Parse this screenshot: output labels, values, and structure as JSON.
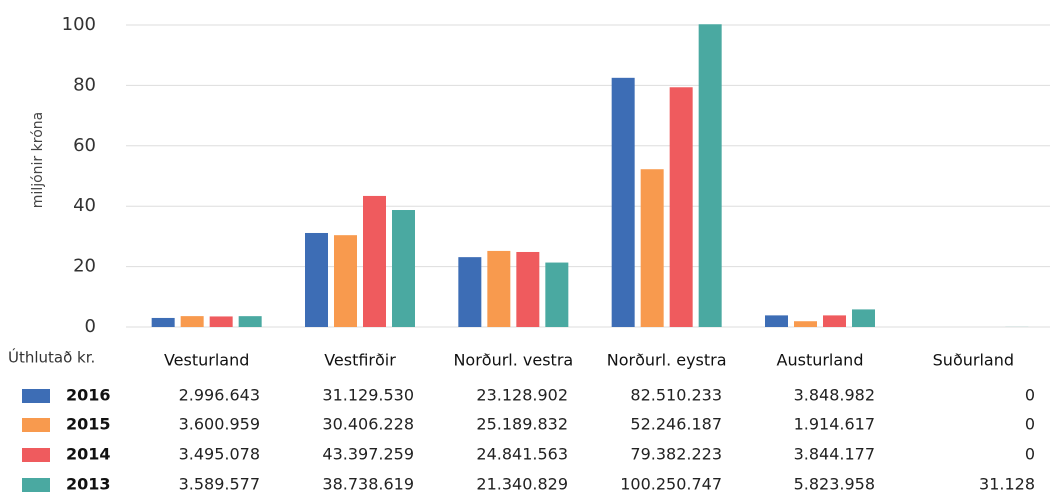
{
  "chart_data": {
    "type": "bar",
    "y_label": "miljónir króna",
    "table_label": "Úthlutað kr.",
    "categories": [
      "Vesturland",
      "Vestfirðir",
      "Norðurl. vestra",
      "Norðurl. eystra",
      "Austurland",
      "Suðurland"
    ],
    "series": [
      {
        "name": "2016",
        "color": "#3d6db5",
        "values": [
          2.996643,
          31.12953,
          23.128902,
          82.510233,
          3.848982,
          0
        ],
        "value_labels": [
          "2.996.643",
          "31.129.530",
          "23.128.902",
          "82.510.233",
          "3.848.982",
          "0"
        ]
      },
      {
        "name": "2015",
        "color": "#f89a4e",
        "values": [
          3.600959,
          30.406228,
          25.189832,
          52.246187,
          1.914617,
          0
        ],
        "value_labels": [
          "3.600.959",
          "30.406.228",
          "25.189.832",
          "52.246.187",
          "1.914.617",
          "0"
        ]
      },
      {
        "name": "2014",
        "color": "#ef5b5e",
        "values": [
          3.495078,
          43.397259,
          24.841563,
          79.382223,
          3.844177,
          0
        ],
        "value_labels": [
          "3.495.078",
          "43.397.259",
          "24.841.563",
          "79.382.223",
          "3.844.177",
          "0"
        ]
      },
      {
        "name": "2013",
        "color": "#4aa9a1",
        "values": [
          3.589577,
          38.738619,
          21.340829,
          100.250747,
          5.823958,
          0.031128
        ],
        "value_labels": [
          "3.589.577",
          "38.738.619",
          "21.340.829",
          "100.250.747",
          "5.823.958",
          "31.128"
        ]
      }
    ],
    "ylim": [
      0,
      100
    ],
    "yticks": [
      0,
      20,
      40,
      60,
      80,
      100
    ],
    "grid": true
  }
}
